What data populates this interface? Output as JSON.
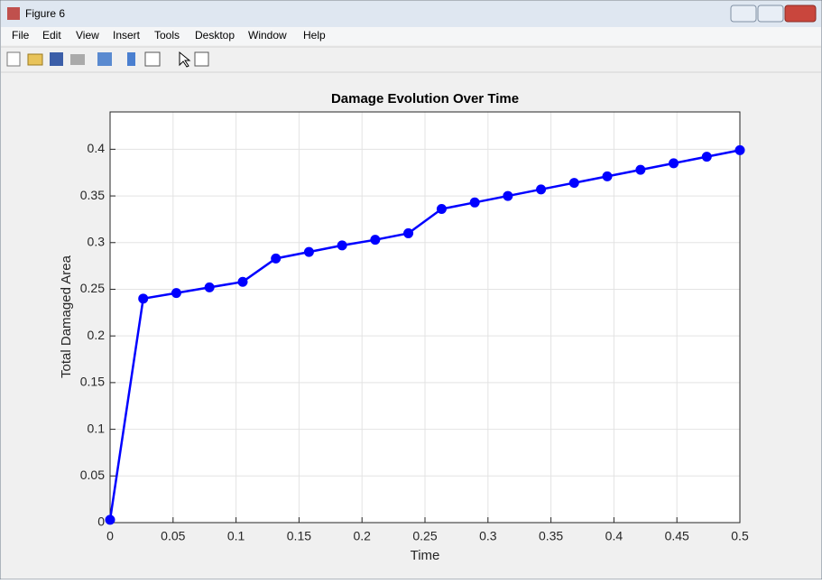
{
  "window": {
    "title": "Figure 6"
  },
  "menu": [
    "File",
    "Edit",
    "View",
    "Insert",
    "Tools",
    "Desktop",
    "Window",
    "Help"
  ],
  "chart_data": {
    "type": "line",
    "title": "Damage Evolution Over Time",
    "x_label": "Time",
    "y_label": "Total Damaged Area",
    "x": [
      0,
      0.0263,
      0.0526,
      0.0789,
      0.1053,
      0.1316,
      0.1579,
      0.1842,
      0.2105,
      0.2368,
      0.2632,
      0.2895,
      0.3158,
      0.3421,
      0.3684,
      0.3947,
      0.4211,
      0.4474,
      0.4737,
      0.5
    ],
    "values": [
      0.003,
      0.24,
      0.246,
      0.252,
      0.258,
      0.283,
      0.29,
      0.297,
      0.303,
      0.31,
      0.336,
      0.343,
      0.35,
      0.357,
      0.364,
      0.371,
      0.378,
      0.385,
      0.392,
      0.399
    ],
    "color": "#0000ff",
    "xlim": [
      0,
      0.5
    ],
    "xticks": [
      0,
      0.05,
      0.1,
      0.15,
      0.2,
      0.25,
      0.3,
      0.35,
      0.4,
      0.45,
      0.5
    ],
    "ylim": [
      0,
      0.44
    ],
    "yticks": [
      0,
      0.05,
      0.1,
      0.15,
      0.2,
      0.25,
      0.3,
      0.35,
      0.4
    ],
    "grid": true
  }
}
